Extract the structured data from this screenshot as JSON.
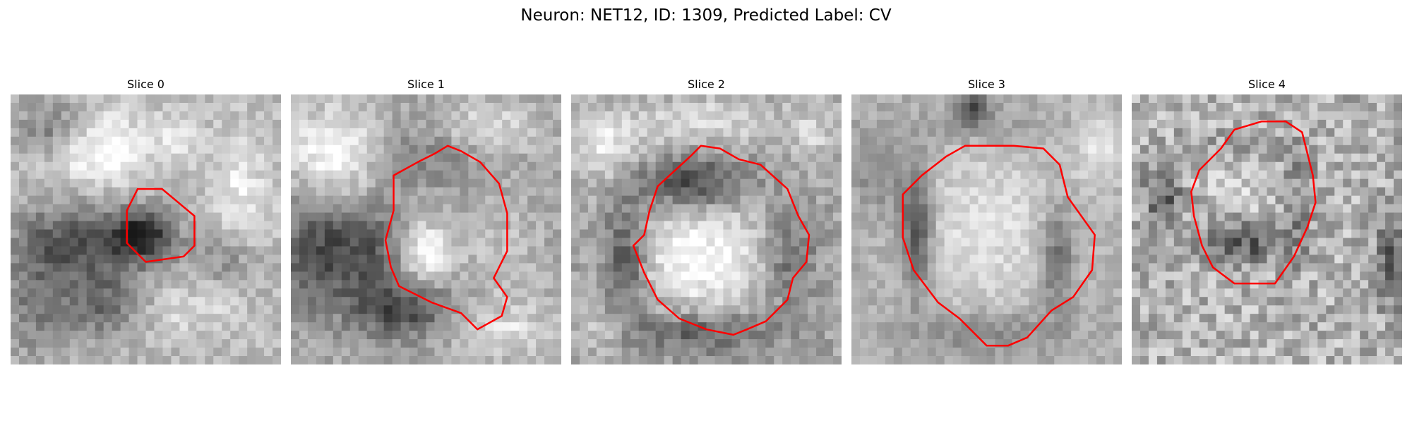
{
  "figure": {
    "title": "Neuron: NET12, ID: 1309, Predicted Label: CV"
  },
  "panels": [
    {
      "title": "Slice 0"
    },
    {
      "title": "Slice 1"
    },
    {
      "title": "Slice 2"
    },
    {
      "title": "Slice 3"
    },
    {
      "title": "Slice 4"
    }
  ],
  "colors": {
    "outline": "#ff0000",
    "background": "#ffffff"
  }
}
